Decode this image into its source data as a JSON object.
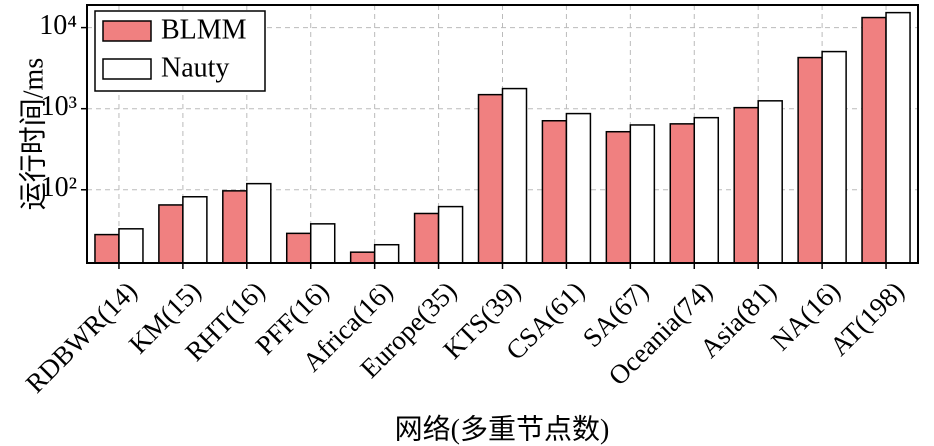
{
  "chart_data": {
    "type": "bar",
    "log_y": true,
    "grid": true,
    "legend": "upper-left",
    "y_label": "运行时间/ms",
    "x_label": "网络(多重节点数)",
    "categories": [
      "RDBWR(14)",
      "KM(15)",
      "RHT(16)",
      "PFF(16)",
      "Africa(16)",
      "Europe(35)",
      "KTS(39)",
      "CSA(61)",
      "SA(67)",
      "Oceania(74)",
      "Asia(81)",
      "NA(16)",
      "AT(198)"
    ],
    "series": [
      {
        "name": "BLMM",
        "color": "#f08080",
        "values": [
          28,
          65,
          97,
          29,
          17,
          51,
          1490,
          710,
          520,
          650,
          1030,
          4270,
          13300
        ]
      },
      {
        "name": "Nauty",
        "color": "#ffffff",
        "values": [
          33,
          82,
          119,
          38,
          21,
          62,
          1770,
          870,
          630,
          775,
          1250,
          5060,
          15300
        ]
      }
    ],
    "ylim": [
      12.5,
      19000
    ],
    "yticks": [
      {
        "value": 100,
        "label": "10²"
      },
      {
        "value": 1000,
        "label": "10³"
      },
      {
        "value": 10000,
        "label": "10⁴"
      }
    ]
  }
}
